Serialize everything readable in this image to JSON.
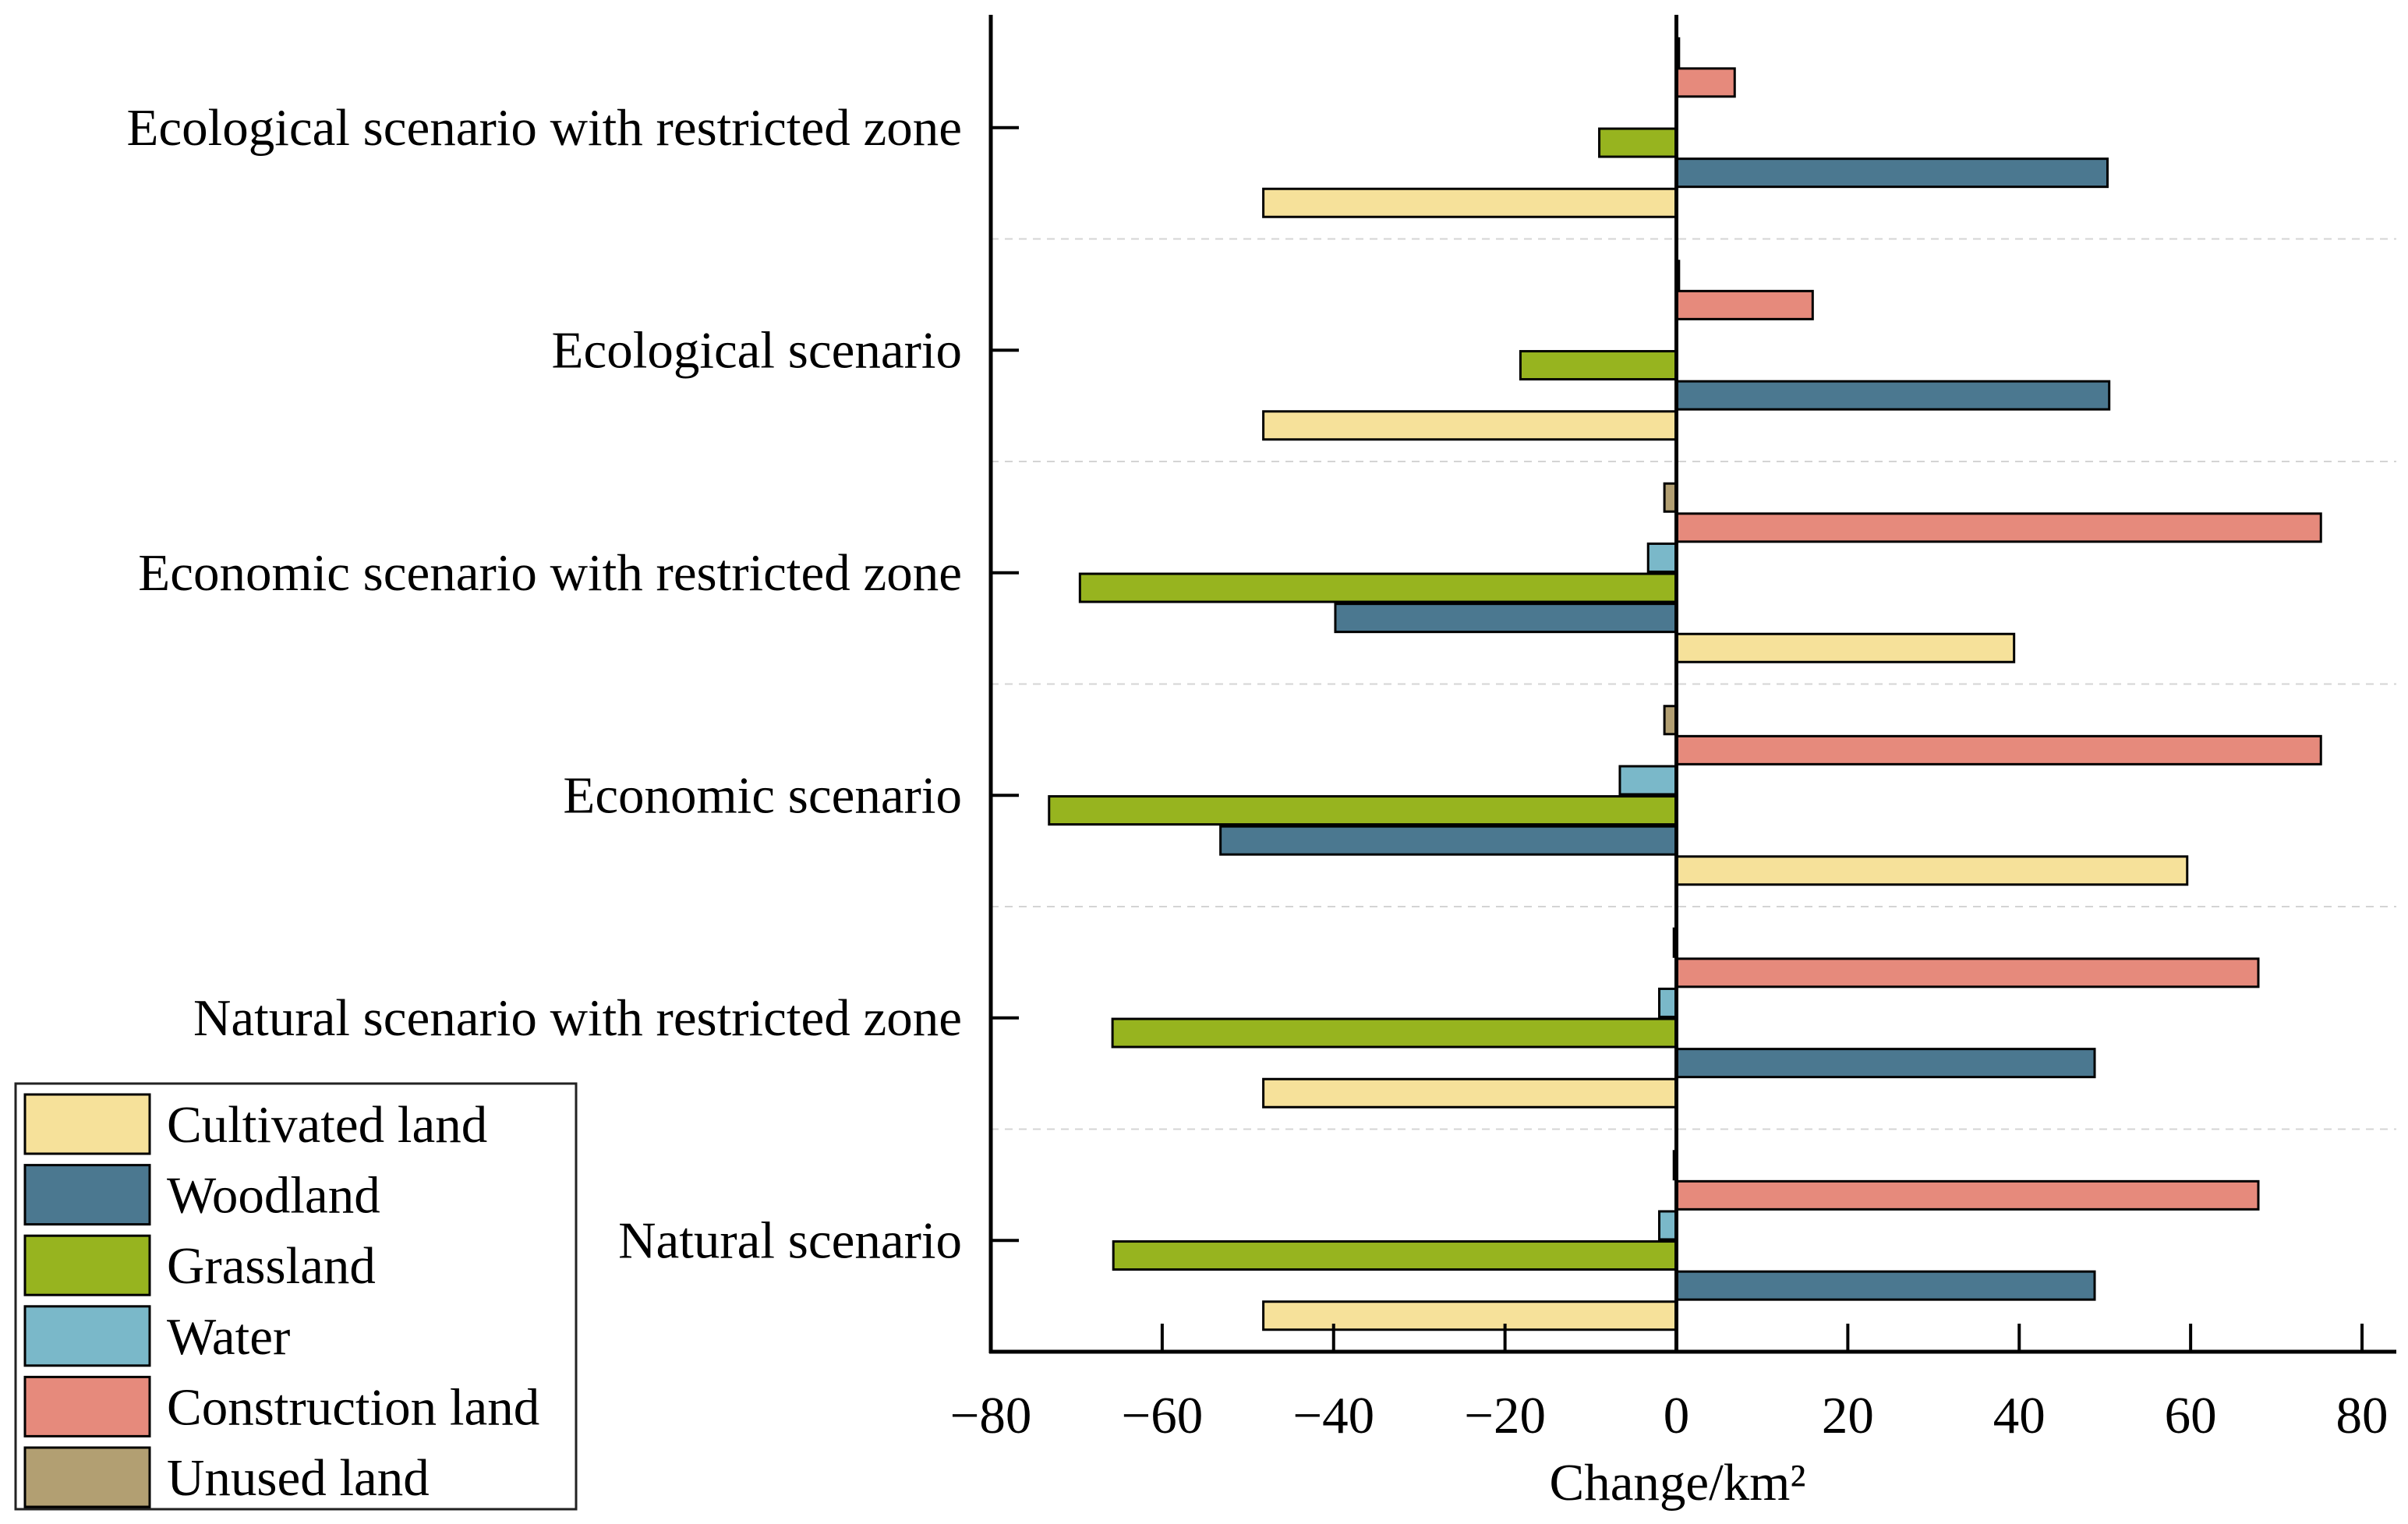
{
  "chart_data": {
    "type": "bar",
    "orientation": "horizontal",
    "categories": [
      "Ecological scenario with restricted zone",
      "Ecological scenario",
      "Economic scenario with restricted zone",
      "Economic scenario",
      "Natural scenario with restricted zone",
      "Natural scenario"
    ],
    "series": [
      {
        "name": "Cultivated land",
        "color": "#F6E19A",
        "values": [
          -48.2,
          -48.2,
          39.4,
          59.6,
          -48.2,
          -48.2
        ]
      },
      {
        "name": "Woodland",
        "color": "#4B7890",
        "values": [
          50.3,
          50.5,
          -39.8,
          -53.2,
          48.8,
          48.8
        ]
      },
      {
        "name": "Grassland",
        "color": "#97B41F",
        "values": [
          -9.0,
          -18.2,
          -69.6,
          -73.2,
          -65.8,
          -65.7
        ]
      },
      {
        "name": "Water",
        "color": "#7AB8C9",
        "values": [
          0,
          0,
          -3.3,
          -6.6,
          -2.0,
          -2.0
        ]
      },
      {
        "name": "Construction land",
        "color": "#E68A7C",
        "values": [
          6.8,
          15.9,
          75.2,
          75.2,
          67.9,
          67.9
        ]
      },
      {
        "name": "Unused land",
        "color": "#B29F72",
        "values": [
          0.3,
          0.3,
          -1.4,
          -1.4,
          -0.3,
          -0.3
        ]
      }
    ],
    "xlabel": "Change/km²",
    "xlim": [
      -80,
      84
    ],
    "xticks": [
      -80,
      -60,
      -40,
      -20,
      0,
      20,
      40,
      60,
      80
    ],
    "xtick_labels": [
      "−80",
      "−60",
      "−40",
      "−20",
      "0",
      "20",
      "40",
      "60",
      "80"
    ],
    "grid": true,
    "legend_position": "bottom-left"
  }
}
